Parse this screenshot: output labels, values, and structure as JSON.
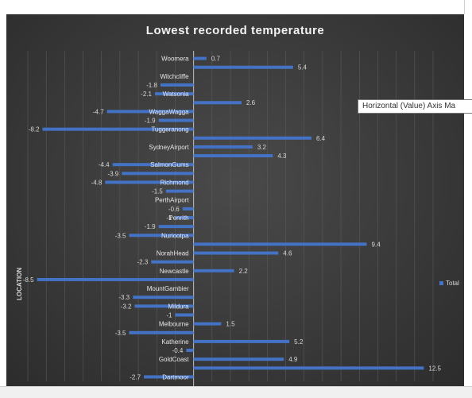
{
  "chart_data": {
    "type": "bar",
    "orientation": "horizontal",
    "title": "Lowest recorded temperature",
    "ylabel": "LOCATION",
    "xlim": [
      -9,
      13
    ],
    "grid": true,
    "legend": {
      "position": "right",
      "entries": [
        "Total"
      ]
    },
    "series": [
      {
        "name": "Total",
        "color": "#4472c4",
        "values": [
          0.7,
          5.4,
          0,
          -1.8,
          -2.1,
          2.6,
          -4.7,
          -1.9,
          -8.2,
          6.4,
          3.2,
          4.3,
          -4.4,
          -3.9,
          -4.8,
          -1.5,
          0,
          -0.6,
          -1,
          -1.9,
          -3.5,
          9.4,
          4.6,
          -2.3,
          2.2,
          -8.5,
          0,
          -3.3,
          -3.2,
          -1,
          1.5,
          -3.5,
          5.2,
          -0.4,
          4.9,
          12.5,
          -2.7
        ]
      }
    ],
    "categories": [
      "Woomera",
      "",
      "Witchcliffe",
      "",
      "Watsonia",
      "",
      "WaggaWagga",
      "",
      "Tuggeranong",
      "",
      "SydneyAirport",
      "",
      "SalmonGums",
      "",
      "Richmond",
      "",
      "PerthAirport",
      "",
      "Penrith",
      "",
      "Nuriootpa",
      "",
      "NorahHead",
      "",
      "Newcastle",
      "",
      "MountGambier",
      "",
      "Mildura",
      "",
      "Melbourne",
      "",
      "Katherine",
      "",
      "GoldCoast",
      "",
      "Dartmoor"
    ],
    "data_labels": [
      "0.7",
      "5.4",
      "",
      "-1.8",
      "-2.1",
      "2.6",
      "-4.7",
      "-1.9",
      "-8.2",
      "6.4",
      "3.2",
      "4.3",
      "-4.4",
      "-3.9",
      "-4.8",
      "-1.5",
      "",
      "-0.6",
      "-1",
      "-1.9",
      "-3.5",
      "9.4",
      "4.6",
      "-2.3",
      "2.2",
      "-8.5",
      "",
      "-3.3",
      "-3.2",
      "-1",
      "1.5",
      "-3.5",
      "5.2",
      "-0.4",
      "4.9",
      "12.5",
      "-2.7"
    ]
  },
  "tooltip": {
    "text": "Horizontal (Value) Axis Ma"
  }
}
